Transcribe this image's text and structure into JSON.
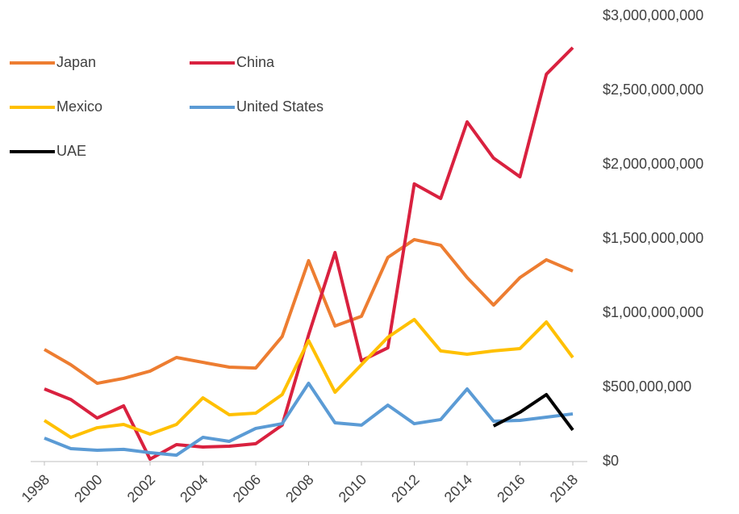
{
  "chart_data": {
    "type": "line",
    "x": [
      1998,
      1999,
      2000,
      2001,
      2002,
      2003,
      2004,
      2005,
      2006,
      2007,
      2008,
      2009,
      2010,
      2011,
      2012,
      2013,
      2014,
      2015,
      2016,
      2017,
      2018
    ],
    "xlim": [
      1998,
      2018
    ],
    "xticks": [
      1998,
      2000,
      2002,
      2004,
      2006,
      2008,
      2010,
      2012,
      2014,
      2016,
      2018
    ],
    "ylim": [
      0,
      3000000000
    ],
    "yticks": [
      {
        "value": 0,
        "label": "$0"
      },
      {
        "value": 500000000,
        "label": "$500,000,000"
      },
      {
        "value": 1000000000,
        "label": "$1,000,000,000"
      },
      {
        "value": 1500000000,
        "label": "$1,500,000,000"
      },
      {
        "value": 2000000000,
        "label": "$2,000,000,000"
      },
      {
        "value": 2500000000,
        "label": "$2,500,000,000"
      },
      {
        "value": 3000000000,
        "label": "$3,000,000,000"
      }
    ],
    "legend": "top-left",
    "series": [
      {
        "name": "Japan",
        "color": "#ed7d31",
        "values": [
          755000000,
          652000000,
          527000000,
          560000000,
          609000000,
          701000000,
          668000000,
          636000000,
          630000000,
          842000000,
          1353000000,
          913000000,
          978000000,
          1375000000,
          1495000000,
          1457000000,
          1239000000,
          1054000000,
          1239000000,
          1359000000,
          1283000000
        ]
      },
      {
        "name": "China",
        "color": "#d9213f",
        "values": [
          489000000,
          418000000,
          293000000,
          375000000,
          16000000,
          114000000,
          98000000,
          103000000,
          120000000,
          245000000,
          853000000,
          1408000000,
          679000000,
          766000000,
          1870000000,
          1772000000,
          2288000000,
          2044000000,
          1918000000,
          2609000000,
          2788000000
        ]
      },
      {
        "name": "Mexico",
        "color": "#ffc000",
        "values": [
          277000000,
          163000000,
          228000000,
          250000000,
          185000000,
          250000000,
          429000000,
          315000000,
          326000000,
          451000000,
          815000000,
          467000000,
          652000000,
          837000000,
          957000000,
          745000000,
          723000000,
          745000000,
          761000000,
          940000000,
          701000000
        ]
      },
      {
        "name": "United States",
        "color": "#5b9bd5",
        "values": [
          158000000,
          87000000,
          76000000,
          82000000,
          60000000,
          43000000,
          163000000,
          136000000,
          223000000,
          255000000,
          527000000,
          261000000,
          245000000,
          380000000,
          255000000,
          283000000,
          489000000,
          272000000,
          277000000,
          299000000,
          321000000
        ]
      },
      {
        "name": "UAE",
        "color": "#000000",
        "values": [
          null,
          null,
          null,
          null,
          null,
          null,
          null,
          null,
          null,
          null,
          null,
          null,
          null,
          null,
          null,
          null,
          null,
          239000000,
          332000000,
          451000000,
          212000000
        ]
      }
    ]
  }
}
